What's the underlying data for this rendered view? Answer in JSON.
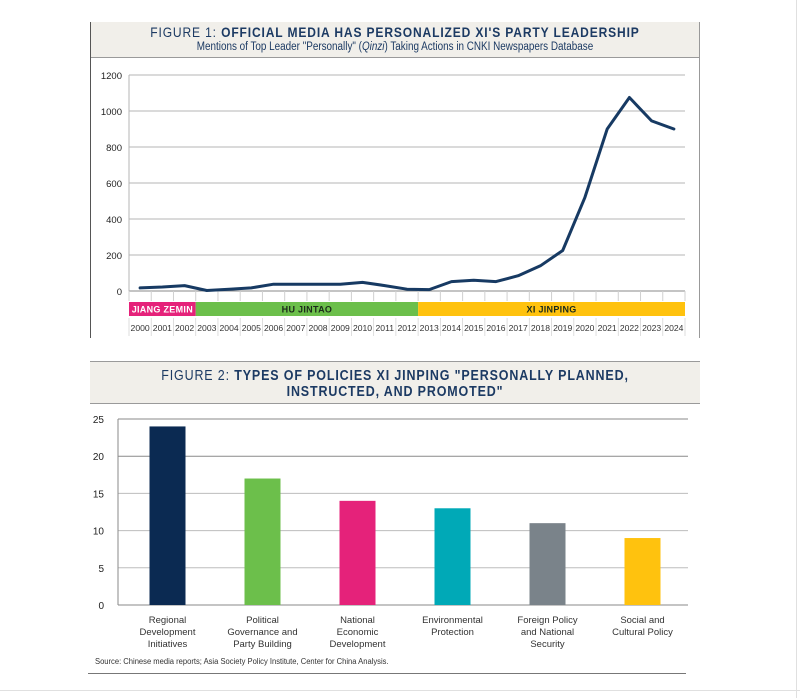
{
  "figure1": {
    "label": "FIGURE 1: ",
    "title": "OFFICIAL MEDIA HAS PERSONALIZED XI'S PARTY LEADERSHIP",
    "subtitle_pre": "Mentions of Top Leader \"Personally\" (",
    "subtitle_em": "Qinzi",
    "subtitle_post": ") Taking Actions in CNKI Newspapers Database"
  },
  "figure2": {
    "label": "FIGURE 2: ",
    "title_line1": "TYPES OF POLICIES XI JINPING \"PERSONALLY PLANNED,",
    "title_line2": "INSTRUCTED, AND PROMOTED\""
  },
  "source": "Source: Chinese media reports; Asia Society Policy Institute, Center for China Analysis.",
  "colors": {
    "line": "#173a63",
    "jiang": "#e5227a",
    "hu": "#6cbf4b",
    "xi": "#ffc20e",
    "header_bg": "#f1efea",
    "title_text": "#1c3a63"
  },
  "chart_data": [
    {
      "type": "line",
      "title": "OFFICIAL MEDIA HAS PERSONALIZED XI'S PARTY LEADERSHIP",
      "subtitle": "Mentions of Top Leader \"Personally\" (Qinzi) Taking Actions in CNKI Newspapers Database",
      "xlabel": "",
      "ylabel": "",
      "ylim": [
        0,
        1200
      ],
      "yticks": [
        0,
        200,
        400,
        600,
        800,
        1000,
        1200
      ],
      "grid": true,
      "x": [
        "2000",
        "2001",
        "2002",
        "2003",
        "2004",
        "2005",
        "2006",
        "2007",
        "2008",
        "2009",
        "2010",
        "2011",
        "2012",
        "2013",
        "2014",
        "2015",
        "2016",
        "2017",
        "2018",
        "2019",
        "2020",
        "2021",
        "2022",
        "2023",
        "2024"
      ],
      "series": [
        {
          "name": "Mentions",
          "values": [
            17,
            22,
            30,
            3,
            10,
            17,
            38,
            38,
            38,
            38,
            48,
            30,
            10,
            8,
            52,
            60,
            52,
            85,
            140,
            225,
            520,
            900,
            1075,
            945,
            900
          ]
        }
      ],
      "eras": [
        {
          "name": "JIANG ZEMIN",
          "start": "2000",
          "end": "2002",
          "color": "#e5227a"
        },
        {
          "name": "HU JINTAO",
          "start": "2003",
          "end": "2012",
          "color": "#6cbf4b"
        },
        {
          "name": "XI JINPING",
          "start": "2013",
          "end": "2024",
          "color": "#ffc20e"
        }
      ]
    },
    {
      "type": "bar",
      "title": "TYPES OF POLICIES XI JINPING \"PERSONALLY PLANNED, INSTRUCTED, AND PROMOTED\"",
      "xlabel": "",
      "ylabel": "",
      "ylim": [
        0,
        25
      ],
      "yticks": [
        0,
        5,
        10,
        15,
        20,
        25
      ],
      "grid": true,
      "categories": [
        [
          "Regional",
          "Development",
          "Initiatives"
        ],
        [
          "Political",
          "Governance and",
          "Party Building"
        ],
        [
          "National",
          "Economic",
          "Development"
        ],
        [
          "Environmental",
          "Protection"
        ],
        [
          "Foreign Policy",
          "and National",
          "Security"
        ],
        [
          "Social and",
          "Cultural Policy"
        ]
      ],
      "values": [
        24,
        17,
        14,
        13,
        11,
        9
      ],
      "bar_colors": [
        "#0b2a52",
        "#6cbf4b",
        "#e5227a",
        "#00a9b7",
        "#7a838a",
        "#ffc20e"
      ]
    }
  ]
}
